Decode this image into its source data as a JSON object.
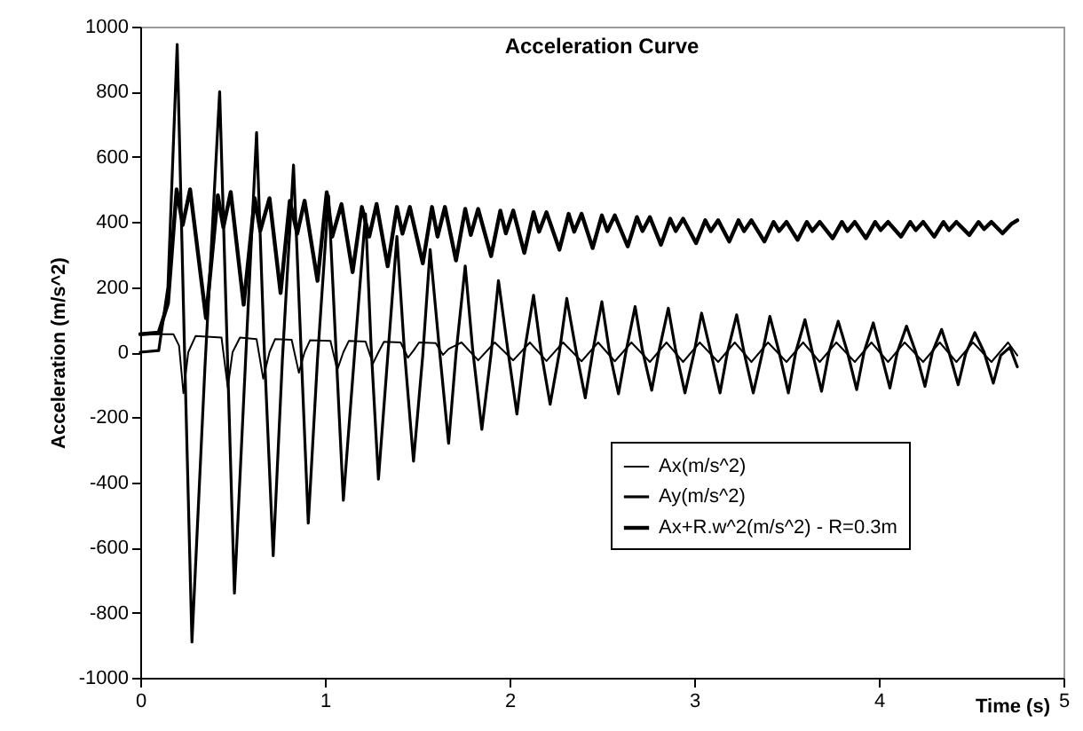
{
  "chart_data": {
    "type": "line",
    "title": "Acceleration Curve",
    "xlabel": "Time (s)",
    "ylabel": "Acceleration (m/s^2)",
    "xlim": [
      0,
      5
    ],
    "xticks": [
      0,
      1,
      2,
      3,
      4,
      5
    ],
    "ylim": [
      -1000,
      1000
    ],
    "yticks": [
      -1000,
      -800,
      -600,
      -400,
      -200,
      0,
      200,
      400,
      600,
      800,
      1000
    ],
    "grid": false,
    "legend": "bottom right",
    "marker": "none",
    "line_style": "solid",
    "series": [
      {
        "name": "Ax(m/s^2)",
        "color": "#000000",
        "x": [
          0,
          0.18,
          0.21,
          0.234,
          0.26,
          0.3,
          0.44,
          0.474,
          0.5,
          0.54,
          0.63,
          0.666,
          0.7,
          0.73,
          0.82,
          0.859,
          0.89,
          0.92,
          1.03,
          1.067,
          1.1,
          1.13,
          1.22,
          1.26,
          1.29,
          1.32,
          1.41,
          1.45,
          1.48,
          1.51,
          1.6,
          1.64,
          1.67,
          1.74,
          1.83,
          1.92,
          2.02,
          2.11,
          2.2,
          2.29,
          2.39,
          2.48,
          2.57,
          2.66,
          2.76,
          2.85,
          2.94,
          3.03,
          3.13,
          3.22,
          3.31,
          3.4,
          3.5,
          3.59,
          3.68,
          3.77,
          3.87,
          3.96,
          4.05,
          4.14,
          4.24,
          4.33,
          4.42,
          4.51,
          4.61,
          4.7,
          4.75
        ],
        "values": [
          55,
          55,
          20,
          -126,
          0,
          50,
          45,
          -108,
          0,
          45,
          40,
          -81,
          0,
          40,
          38,
          -63,
          0,
          37,
          35,
          -54,
          0,
          35,
          33,
          -35,
          0,
          32,
          30,
          -17,
          5,
          30,
          28,
          -8,
          10,
          30,
          -25,
          30,
          -25,
          30,
          -27,
          30,
          -28,
          30,
          -28,
          30,
          -30,
          30,
          -30,
          30,
          -30,
          30,
          -30,
          30,
          -30,
          30,
          -30,
          30,
          -30,
          30,
          -30,
          30,
          -30,
          30,
          -30,
          30,
          -30,
          30,
          -10
        ]
      },
      {
        "name": "Ay(m/s^2)",
        "color": "#000000",
        "x": [
          0,
          0.1,
          0.15,
          0.2,
          0.24,
          0.28,
          0.35,
          0.43,
          0.47,
          0.51,
          0.57,
          0.63,
          0.67,
          0.72,
          0.77,
          0.83,
          0.87,
          0.91,
          0.96,
          1.02,
          1.06,
          1.1,
          1.16,
          1.22,
          1.25,
          1.29,
          1.34,
          1.39,
          1.43,
          1.48,
          1.53,
          1.57,
          1.62,
          1.67,
          1.71,
          1.76,
          1.8,
          1.85,
          1.9,
          1.94,
          1.99,
          2.04,
          2.08,
          2.13,
          2.17,
          2.22,
          2.27,
          2.31,
          2.36,
          2.41,
          2.45,
          2.5,
          2.54,
          2.59,
          2.63,
          2.68,
          2.72,
          2.77,
          2.81,
          2.86,
          2.9,
          2.95,
          3.0,
          3.04,
          3.09,
          3.14,
          3.18,
          3.23,
          3.27,
          3.32,
          3.37,
          3.41,
          3.46,
          3.51,
          3.55,
          3.6,
          3.64,
          3.69,
          3.73,
          3.78,
          3.83,
          3.88,
          3.92,
          3.97,
          4.01,
          4.06,
          4.1,
          4.15,
          4.2,
          4.25,
          4.29,
          4.34,
          4.38,
          4.43,
          4.47,
          4.52,
          4.57,
          4.62,
          4.66,
          4.71,
          4.75
        ],
        "values": [
          0,
          5,
          200,
          945,
          0,
          -890,
          -50,
          800,
          30,
          -740,
          -30,
          675,
          30,
          -625,
          -20,
          575,
          20,
          -525,
          -20,
          480,
          10,
          -455,
          -10,
          425,
          20,
          -390,
          -15,
          355,
          10,
          -335,
          -10,
          315,
          10,
          -280,
          -5,
          265,
          10,
          -237,
          -5,
          220,
          10,
          -190,
          0,
          175,
          5,
          -160,
          0,
          165,
          5,
          -140,
          0,
          155,
          5,
          -128,
          0,
          140,
          5,
          -117,
          5,
          135,
          5,
          -125,
          0,
          120,
          0,
          -125,
          0,
          115,
          0,
          -125,
          0,
          110,
          0,
          -125,
          0,
          100,
          0,
          -120,
          0,
          95,
          0,
          -115,
          0,
          90,
          0,
          -110,
          0,
          80,
          0,
          -105,
          0,
          70,
          0,
          -100,
          -5,
          60,
          0,
          -95,
          -10,
          15,
          -45
        ]
      },
      {
        "name": "Ax+R.w^2(m/s^2) - R=0.3m",
        "color": "#000000",
        "x": [
          0,
          0.1,
          0.15,
          0.197,
          0.23,
          0.27,
          0.356,
          0.42,
          0.45,
          0.49,
          0.56,
          0.62,
          0.65,
          0.7,
          0.76,
          0.81,
          0.85,
          0.89,
          0.96,
          1.01,
          1.04,
          1.09,
          1.15,
          1.2,
          1.24,
          1.28,
          1.34,
          1.39,
          1.42,
          1.46,
          1.53,
          1.58,
          1.61,
          1.65,
          1.71,
          1.76,
          1.79,
          1.83,
          1.9,
          1.95,
          1.98,
          2.02,
          2.08,
          2.13,
          2.16,
          2.2,
          2.27,
          2.32,
          2.35,
          2.39,
          2.45,
          2.5,
          2.53,
          2.57,
          2.64,
          2.69,
          2.72,
          2.76,
          2.82,
          2.87,
          2.9,
          2.94,
          3.01,
          3.06,
          3.09,
          3.13,
          3.19,
          3.24,
          3.27,
          3.31,
          3.38,
          3.43,
          3.46,
          3.5,
          3.56,
          3.61,
          3.64,
          3.68,
          3.75,
          3.8,
          3.83,
          3.87,
          3.93,
          3.98,
          4.01,
          4.05,
          4.12,
          4.17,
          4.2,
          4.24,
          4.3,
          4.35,
          4.38,
          4.42,
          4.49,
          4.54,
          4.57,
          4.61,
          4.67,
          4.72,
          4.75
        ],
        "values": [
          55,
          60,
          150,
          500,
          391,
          500,
          105,
          482,
          384,
          492,
          146,
          473,
          373,
          473,
          182,
          465,
          364,
          465,
          219,
          491,
          355,
          455,
          246,
          446,
          355,
          455,
          264,
          446,
          364,
          446,
          273,
          446,
          355,
          446,
          282,
          440,
          360,
          440,
          295,
          435,
          365,
          435,
          305,
          430,
          370,
          430,
          315,
          425,
          370,
          425,
          320,
          420,
          372,
          420,
          325,
          415,
          372,
          415,
          330,
          410,
          372,
          410,
          335,
          405,
          372,
          405,
          340,
          405,
          372,
          405,
          340,
          400,
          372,
          400,
          345,
          400,
          372,
          400,
          350,
          400,
          372,
          400,
          350,
          400,
          375,
          400,
          355,
          400,
          375,
          400,
          355,
          400,
          375,
          400,
          360,
          400,
          378,
          400,
          365,
          395,
          405
        ]
      }
    ]
  }
}
